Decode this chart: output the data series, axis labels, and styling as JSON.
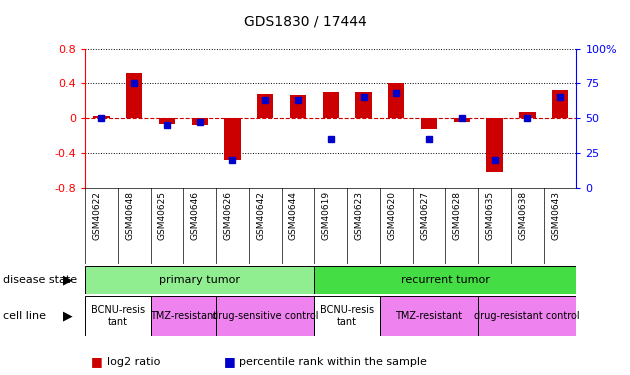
{
  "title": "GDS1830 / 17444",
  "samples": [
    "GSM40622",
    "GSM40648",
    "GSM40625",
    "GSM40646",
    "GSM40626",
    "GSM40642",
    "GSM40644",
    "GSM40619",
    "GSM40623",
    "GSM40620",
    "GSM40627",
    "GSM40628",
    "GSM40635",
    "GSM40638",
    "GSM40643"
  ],
  "log2_ratio": [
    0.02,
    0.52,
    -0.07,
    -0.08,
    -0.48,
    0.28,
    0.27,
    0.3,
    0.3,
    0.4,
    -0.13,
    -0.05,
    -0.62,
    0.07,
    0.32
  ],
  "percentile": [
    50,
    75,
    45,
    47,
    20,
    63,
    63,
    35,
    65,
    68,
    35,
    50,
    20,
    50,
    65
  ],
  "disease_state": [
    {
      "label": "primary tumor",
      "start": 0,
      "end": 7,
      "color": "#90EE90"
    },
    {
      "label": "recurrent tumor",
      "start": 7,
      "end": 15,
      "color": "#44DD44"
    }
  ],
  "cell_lines": [
    {
      "label": "BCNU-resis\ntant",
      "start": 0,
      "end": 2,
      "color": "#FFFFFF"
    },
    {
      "label": "TMZ-resistant",
      "start": 2,
      "end": 4,
      "color": "#EE82EE"
    },
    {
      "label": "drug-sensitive control",
      "start": 4,
      "end": 7,
      "color": "#EE82EE"
    },
    {
      "label": "BCNU-resis\ntant",
      "start": 7,
      "end": 9,
      "color": "#FFFFFF"
    },
    {
      "label": "TMZ-resistant",
      "start": 9,
      "end": 12,
      "color": "#EE82EE"
    },
    {
      "label": "drug-resistant control",
      "start": 12,
      "end": 15,
      "color": "#EE82EE"
    }
  ],
  "ylim_left": [
    -0.8,
    0.8
  ],
  "ylim_right": [
    0,
    100
  ],
  "bar_color": "#CC0000",
  "dot_color": "#0000CC",
  "zero_line_color": "#CC0000",
  "right_ticks": [
    0,
    25,
    50,
    75,
    100
  ],
  "left_ticks": [
    -0.8,
    -0.4,
    0.0,
    0.4,
    0.8
  ],
  "label_disease_state": "disease state",
  "label_cell_line": "cell line",
  "legend_log2": "log2 ratio",
  "legend_pct": "percentile rank within the sample"
}
